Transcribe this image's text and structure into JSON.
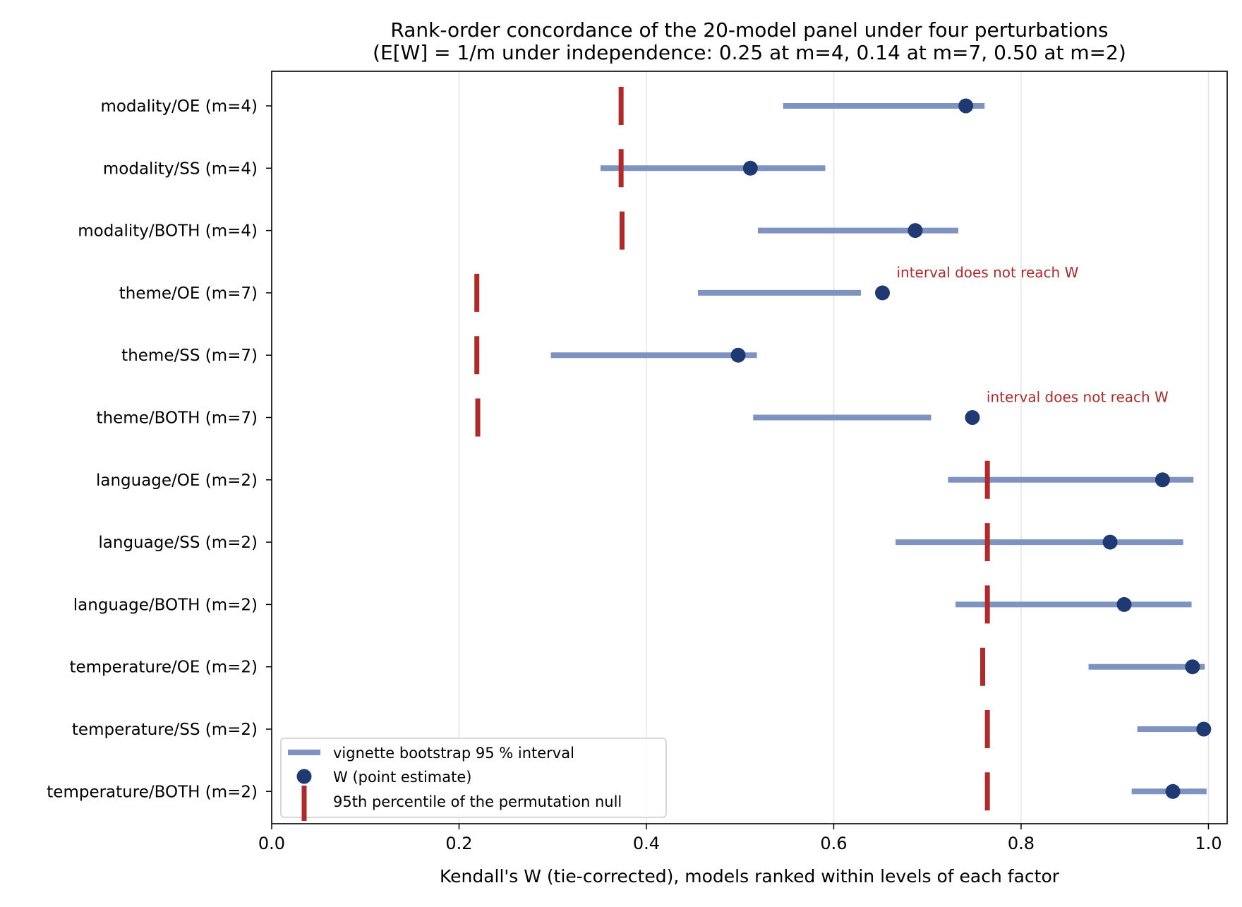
{
  "chart_data": {
    "type": "interval-dot",
    "title": "Rank-order concordance of the 20-model panel under four perturbations",
    "subtitle": "(E[W] = 1/m under independence: 0.25 at m=4, 0.14 at m=7, 0.50 at m=2)",
    "xlabel": "Kendall's W (tie-corrected), models ranked within levels of each factor",
    "ylabel": "",
    "xlim": [
      0.0,
      1.02
    ],
    "xticks": [
      0.0,
      0.2,
      0.4,
      0.6,
      0.8,
      1.0
    ],
    "xtick_labels": [
      "0.0",
      "0.2",
      "0.4",
      "0.6",
      "0.8",
      "1.0"
    ],
    "grid": "vertical",
    "legend_position": "lower-left",
    "colors": {
      "interval": "#7e93c0",
      "point": "#1f3a73",
      "null": "#b02a2a",
      "annotation": "#b02a2a",
      "grid": "#e4e4e4"
    },
    "rows": [
      {
        "label": "modality/OE  (m=4)",
        "w": 0.741,
        "ci": [
          0.546,
          0.761
        ],
        "null95": 0.373,
        "note": ""
      },
      {
        "label": "modality/SS  (m=4)",
        "w": 0.511,
        "ci": [
          0.351,
          0.591
        ],
        "null95": 0.373,
        "note": ""
      },
      {
        "label": "modality/BOTH  (m=4)",
        "w": 0.687,
        "ci": [
          0.519,
          0.733
        ],
        "null95": 0.374,
        "note": ""
      },
      {
        "label": "theme/OE  (m=7)",
        "w": 0.652,
        "ci": [
          0.455,
          0.629
        ],
        "null95": 0.219,
        "note": "interval does not reach W"
      },
      {
        "label": "theme/SS  (m=7)",
        "w": 0.498,
        "ci": [
          0.298,
          0.518
        ],
        "null95": 0.219,
        "note": ""
      },
      {
        "label": "theme/BOTH  (m=7)",
        "w": 0.748,
        "ci": [
          0.514,
          0.704
        ],
        "null95": 0.22,
        "note": "interval does not reach W"
      },
      {
        "label": "language/OE  (m=2)",
        "w": 0.951,
        "ci": [
          0.722,
          0.984
        ],
        "null95": 0.764,
        "note": ""
      },
      {
        "label": "language/SS  (m=2)",
        "w": 0.895,
        "ci": [
          0.666,
          0.973
        ],
        "null95": 0.764,
        "note": ""
      },
      {
        "label": "language/BOTH  (m=2)",
        "w": 0.91,
        "ci": [
          0.73,
          0.982
        ],
        "null95": 0.764,
        "note": ""
      },
      {
        "label": "temperature/OE  (m=2)",
        "w": 0.983,
        "ci": [
          0.872,
          0.996
        ],
        "null95": 0.759,
        "note": ""
      },
      {
        "label": "temperature/SS  (m=2)",
        "w": 0.995,
        "ci": [
          0.924,
          0.995
        ],
        "null95": 0.764,
        "note": ""
      },
      {
        "label": "temperature/BOTH  (m=2)",
        "w": 0.962,
        "ci": [
          0.918,
          0.998
        ],
        "null95": 0.764,
        "note": ""
      }
    ],
    "legend": [
      {
        "kind": "interval",
        "label": "vignette bootstrap 95 % interval"
      },
      {
        "kind": "point",
        "label": "W (point estimate)"
      },
      {
        "kind": "null",
        "label": "95th percentile of the permutation null"
      }
    ]
  }
}
